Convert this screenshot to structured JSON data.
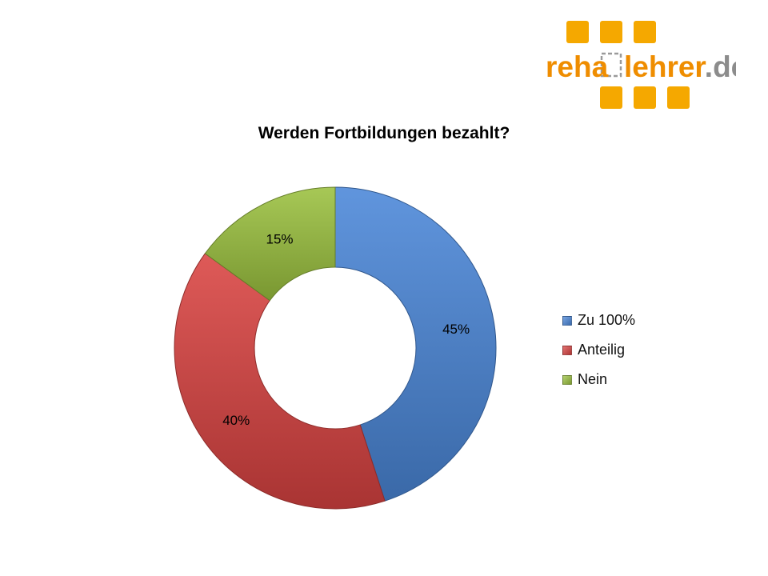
{
  "logo": {
    "text_left": "reha",
    "text_right": "lehrer",
    "text_suffix": ".de",
    "color_blocks": "#f5a800",
    "color_text": "#ef8d00",
    "color_suffix": "#8c8c8c"
  },
  "chart_data": {
    "type": "pie",
    "title": "Werden Fortbildungen bezahlt?",
    "donut": true,
    "categories": [
      "Zu 100%",
      "Anteilig",
      "Nein"
    ],
    "values": [
      45,
      40,
      15
    ],
    "value_labels": [
      "45%",
      "40%",
      "15%"
    ],
    "colors": [
      "#4a86d8",
      "#d94341",
      "#9bc13f"
    ],
    "legend_position": "right"
  }
}
